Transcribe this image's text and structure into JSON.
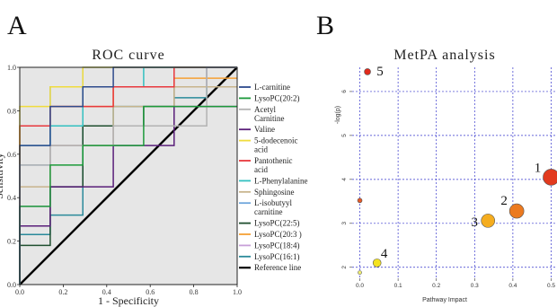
{
  "panels": {
    "a_letter": "A",
    "b_letter": "B"
  },
  "chart_data": [
    {
      "type": "line",
      "title": "ROC curve",
      "xlabel": "1 - Specificity",
      "ylabel": "Sensitivity",
      "xlim": [
        0,
        1
      ],
      "ylim": [
        0,
        1
      ],
      "xticks": [
        "0.0",
        "0.2",
        "0.4",
        "0.6",
        "0.8",
        "1.0"
      ],
      "yticks": [
        "0.0",
        "0.2",
        "0.4",
        "0.6",
        "0.8",
        "1.0"
      ],
      "grid": false,
      "background": "#e6e6e6",
      "legend_position": "right",
      "series": [
        {
          "name": "L-carnitine",
          "color": "#2e4a8c",
          "points": [
            [
              0,
              0
            ],
            [
              0,
              0.64
            ],
            [
              0.14,
              0.64
            ],
            [
              0.14,
              0.82
            ],
            [
              0.29,
              0.82
            ],
            [
              0.29,
              0.91
            ],
            [
              0.43,
              0.91
            ],
            [
              0.43,
              1
            ],
            [
              1,
              1
            ]
          ]
        },
        {
          "name": "LysoPC(20:2)",
          "color": "#1c9a3a",
          "points": [
            [
              0,
              0
            ],
            [
              0,
              0.36
            ],
            [
              0.14,
              0.36
            ],
            [
              0.14,
              0.55
            ],
            [
              0.29,
              0.55
            ],
            [
              0.29,
              0.64
            ],
            [
              0.57,
              0.64
            ],
            [
              0.57,
              0.82
            ],
            [
              1,
              0.82
            ]
          ]
        },
        {
          "name": "Acetyl Carnitine",
          "color": "#b3b3b3",
          "points": [
            [
              0,
              0
            ],
            [
              0,
              0.55
            ],
            [
              0.14,
              0.55
            ],
            [
              0.14,
              0.64
            ],
            [
              0.43,
              0.64
            ],
            [
              0.43,
              0.73
            ],
            [
              0.86,
              0.73
            ],
            [
              0.86,
              1
            ],
            [
              1,
              1
            ]
          ]
        },
        {
          "name": "Valine",
          "color": "#5a1f7a",
          "points": [
            [
              0,
              0
            ],
            [
              0,
              0.27
            ],
            [
              0.14,
              0.27
            ],
            [
              0.14,
              0.45
            ],
            [
              0.43,
              0.45
            ],
            [
              0.43,
              0.64
            ],
            [
              0.71,
              0.64
            ],
            [
              0.71,
              0.82
            ],
            [
              1,
              0.82
            ]
          ]
        },
        {
          "name": "5-dodecenoic acid",
          "color": "#f0dc3c",
          "points": [
            [
              0,
              0
            ],
            [
              0,
              0.82
            ],
            [
              0.14,
              0.82
            ],
            [
              0.14,
              0.91
            ],
            [
              0.29,
              0.91
            ],
            [
              0.29,
              1
            ],
            [
              1,
              1
            ]
          ]
        },
        {
          "name": "Pantothenic acid",
          "color": "#e8383d",
          "points": [
            [
              0,
              0
            ],
            [
              0,
              0.73
            ],
            [
              0.14,
              0.73
            ],
            [
              0.14,
              0.82
            ],
            [
              0.43,
              0.82
            ],
            [
              0.43,
              0.91
            ],
            [
              0.71,
              0.91
            ],
            [
              0.71,
              1
            ],
            [
              1,
              1
            ]
          ]
        },
        {
          "name": "L-Phenylalanine",
          "color": "#33c0c0",
          "points": [
            [
              0,
              0
            ],
            [
              0,
              0.64
            ],
            [
              0.14,
              0.64
            ],
            [
              0.14,
              0.73
            ],
            [
              0.29,
              0.73
            ],
            [
              0.29,
              0.91
            ],
            [
              0.57,
              0.91
            ],
            [
              0.57,
              1
            ],
            [
              1,
              1
            ]
          ]
        },
        {
          "name": "Sphingosine",
          "color": "#c8b48c",
          "points": [
            [
              0,
              0
            ],
            [
              0,
              0.45
            ],
            [
              0.14,
              0.45
            ],
            [
              0.14,
              0.64
            ],
            [
              0.43,
              0.64
            ],
            [
              0.43,
              0.82
            ],
            [
              0.71,
              0.82
            ],
            [
              0.71,
              0.91
            ],
            [
              1,
              0.91
            ]
          ]
        },
        {
          "name": "L-isobutyyl carnitine",
          "color": "#6fa6dc",
          "points": [
            [
              0,
              0
            ],
            [
              0,
              0.55
            ],
            [
              0.14,
              0.55
            ],
            [
              0.14,
              0.91
            ],
            [
              0.29,
              0.91
            ],
            [
              0.29,
              1
            ],
            [
              1,
              1
            ]
          ]
        },
        {
          "name": "LysoPC(22:5)",
          "color": "#1f4f2f",
          "points": [
            [
              0,
              0
            ],
            [
              0,
              0.18
            ],
            [
              0.14,
              0.18
            ],
            [
              0.14,
              0.45
            ],
            [
              0.29,
              0.45
            ],
            [
              0.29,
              0.73
            ],
            [
              0.57,
              0.73
            ],
            [
              0.57,
              0.82
            ],
            [
              0.71,
              0.82
            ],
            [
              0.71,
              0.91
            ],
            [
              1,
              0.91
            ]
          ]
        },
        {
          "name": "LysoPC(20:3 )",
          "color": "#f5a035",
          "points": [
            [
              0,
              0
            ],
            [
              0,
              0.73
            ],
            [
              0.14,
              0.73
            ],
            [
              0.14,
              0.82
            ],
            [
              0.43,
              0.82
            ],
            [
              0.43,
              0.91
            ],
            [
              0.71,
              0.91
            ],
            [
              0.71,
              0.95
            ],
            [
              1,
              0.95
            ]
          ]
        },
        {
          "name": "LysoPC(18:4)",
          "color": "#c8a0d8",
          "points": [
            [
              0,
              0
            ],
            [
              0,
              0.36
            ],
            [
              0.14,
              0.36
            ],
            [
              0.14,
              0.64
            ],
            [
              0.43,
              0.64
            ],
            [
              0.43,
              0.73
            ],
            [
              0.57,
              0.73
            ],
            [
              0.57,
              0.82
            ],
            [
              0.71,
              0.82
            ],
            [
              0.71,
              0.91
            ],
            [
              0.86,
              0.91
            ],
            [
              0.86,
              1
            ],
            [
              1,
              1
            ]
          ]
        },
        {
          "name": "LysoPC(16:1)",
          "color": "#2a8a9a",
          "points": [
            [
              0,
              0
            ],
            [
              0,
              0.23
            ],
            [
              0.14,
              0.23
            ],
            [
              0.14,
              0.32
            ],
            [
              0.29,
              0.32
            ],
            [
              0.29,
              0.73
            ],
            [
              0.43,
              0.73
            ],
            [
              0.43,
              0.82
            ],
            [
              0.71,
              0.82
            ],
            [
              0.71,
              0.86
            ],
            [
              0.86,
              0.86
            ],
            [
              0.86,
              1
            ],
            [
              1,
              1
            ]
          ]
        },
        {
          "name": "Reference line",
          "color": "#000000",
          "points": [
            [
              0,
              0
            ],
            [
              1,
              1
            ]
          ]
        }
      ]
    },
    {
      "type": "scatter",
      "title": "MetPA analysis",
      "xlabel": "Pathway Impact",
      "ylabel": "-log(p)",
      "xlim": [
        -0.02,
        0.52
      ],
      "ylim": [
        1.75,
        6.55
      ],
      "xticks": [
        0,
        0.1,
        0.2,
        0.3,
        0.4,
        0.5
      ],
      "xtick_labels": [
        "0.0",
        "0.1",
        "0.2",
        "0.3",
        "0.4",
        "0.5"
      ],
      "yticks": [
        2,
        3,
        4,
        5,
        6
      ],
      "ytick_labels": [
        "2",
        "3",
        "4",
        "5",
        "6"
      ],
      "grid": true,
      "grid_color": "#3333cc",
      "points": [
        {
          "x": 0.5,
          "y": 4.05,
          "size": 9,
          "color": "#e23a1e",
          "label": "1"
        },
        {
          "x": 0.41,
          "y": 3.28,
          "size": 8,
          "color": "#ec7a20",
          "label": "2"
        },
        {
          "x": 0.335,
          "y": 3.06,
          "size": 7.5,
          "color": "#f5ad1f",
          "label": "3"
        },
        {
          "x": 0.045,
          "y": 2.1,
          "size": 4.5,
          "color": "#f4e31f",
          "label": "4"
        },
        {
          "x": 0.02,
          "y": 6.45,
          "size": 3.5,
          "color": "#e12a1c",
          "label": "5"
        },
        {
          "x": 0.0,
          "y": 3.52,
          "size": 2.5,
          "color": "#e65a28",
          "label": ""
        },
        {
          "x": 0.0,
          "y": 1.88,
          "size": 2,
          "color": "#f2ef70",
          "label": ""
        }
      ]
    }
  ]
}
